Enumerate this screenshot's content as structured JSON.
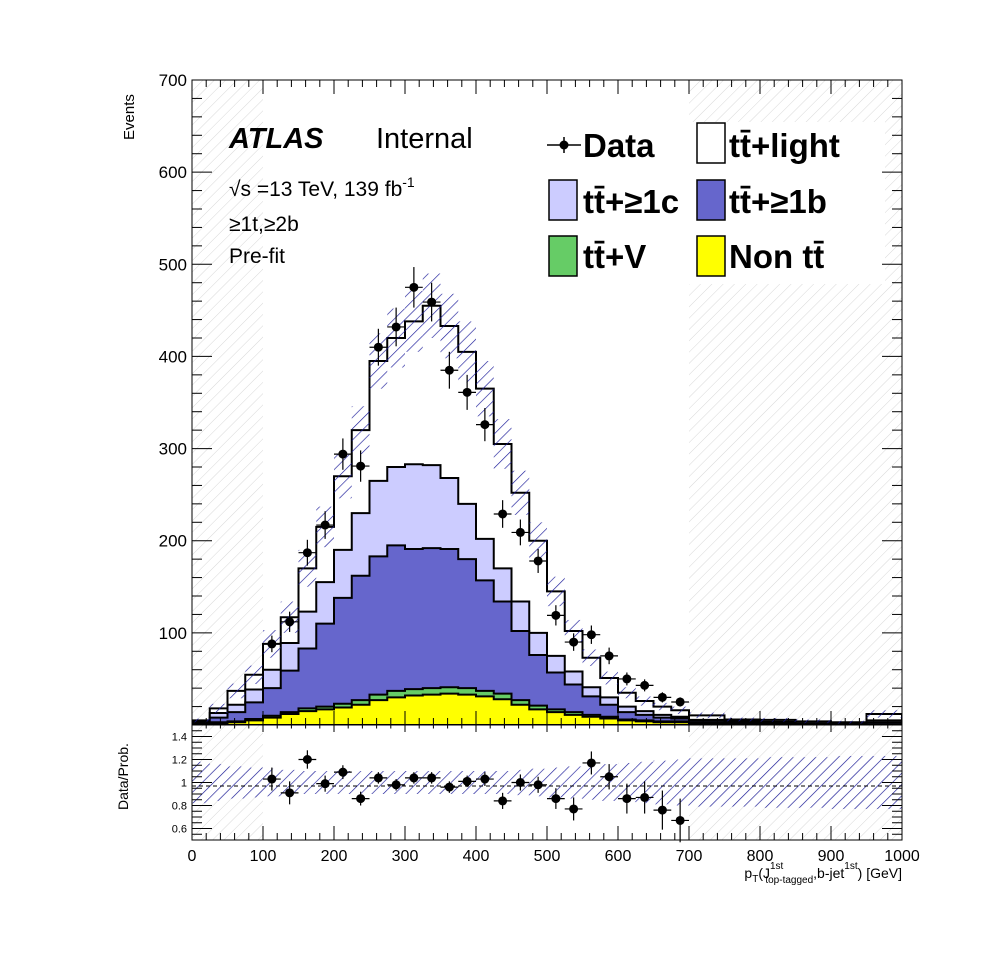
{
  "labels": {
    "atlas": "ATLAS",
    "internal": "Internal",
    "energy_prefix": "√s =13 TeV, 139 fb",
    "energy_exp": "-1",
    "region": "≥1t,≥2b",
    "fit": "Pre-fit"
  },
  "legend": {
    "data": "Data",
    "ttlight": "tt̄+light",
    "tt1c": "tt̄+≥1c",
    "tt1b": "tt̄+≥1b",
    "ttV": "tt̄+V",
    "nontt": "Non tt̄"
  },
  "colors": {
    "ttlight": "#ffffff",
    "tt1c": "#ccccff",
    "tt1b": "#6666cc",
    "ttV": "#66cc66",
    "nontt": "#ffff00",
    "data": "#000000",
    "hatch": "#1a1a99"
  },
  "chart_data": {
    "type": "bar",
    "stacked": true,
    "xlabel_parts": {
      "p": "p",
      "T": "T",
      "open": "(J",
      "sup1": "1st",
      "sub1": "top-tagged",
      "mid": ",b-jet",
      "sup2": "1st",
      "close": ") [GeV]"
    },
    "ylabel_main": "Events",
    "ylabel_ratio": "Data/Prob.",
    "xlim": [
      0,
      1000
    ],
    "ylim": [
      0,
      700
    ],
    "ratio_ylim": [
      0.5,
      1.5
    ],
    "x_ticks": [
      "0",
      "100",
      "200",
      "300",
      "400",
      "500",
      "600",
      "700",
      "800",
      "900",
      "1000"
    ],
    "y_ticks": [
      "100",
      "200",
      "300",
      "400",
      "500",
      "600",
      "700"
    ],
    "ratio_y_ticks": [
      "0.6",
      "0.8",
      "1",
      "1.2",
      "1.4"
    ],
    "bin_edges": [
      0,
      25,
      50,
      75,
      100,
      125,
      150,
      175,
      200,
      225,
      250,
      275,
      300,
      325,
      350,
      375,
      400,
      425,
      450,
      475,
      500,
      525,
      550,
      575,
      600,
      625,
      650,
      675,
      700,
      750,
      800,
      850,
      900,
      950,
      1000
    ],
    "series": [
      {
        "key": "nontt",
        "name": "Non tt̄",
        "values": [
          1,
          2,
          3,
          5,
          8,
          12,
          15,
          17,
          19,
          22,
          27,
          30,
          32,
          33,
          34,
          33,
          31,
          28,
          22,
          17,
          14,
          11,
          9,
          7,
          5,
          4,
          3,
          3,
          2,
          1.5,
          1,
          0.5,
          0.5,
          0.5
        ]
      },
      {
        "key": "ttV",
        "name": "tt̄+V",
        "values": [
          0.5,
          1,
          1,
          1.5,
          2,
          2,
          3,
          3,
          4,
          5,
          6,
          7,
          7,
          7,
          7,
          7,
          6,
          6,
          5,
          4,
          3,
          3,
          2,
          2,
          1,
          1,
          1,
          1,
          0.5,
          0.5,
          0.5,
          0.5,
          0.5,
          0.5
        ]
      },
      {
        "key": "tt1b",
        "name": "tt̄+≥1b",
        "values": [
          1.5,
          5,
          10,
          18,
          30,
          45,
          65,
          90,
          115,
          135,
          150,
          158,
          152,
          152,
          150,
          140,
          120,
          100,
          75,
          55,
          40,
          30,
          20,
          13,
          8,
          6,
          4,
          3,
          2,
          1,
          1,
          0.5,
          0.5,
          2
        ]
      },
      {
        "key": "tt1c",
        "name": "tt̄+≥1c",
        "values": [
          1,
          5,
          8,
          14,
          20,
          30,
          40,
          45,
          52,
          68,
          82,
          85,
          92,
          90,
          77,
          60,
          45,
          36,
          32,
          24,
          18,
          14,
          10,
          8,
          6,
          4,
          3,
          2,
          1,
          1,
          1,
          0.5,
          0.5,
          2
        ]
      },
      {
        "key": "ttlight",
        "name": "tt̄+light",
        "values": [
          1,
          5,
          15,
          16,
          28,
          28,
          47,
          60,
          80,
          90,
          130,
          140,
          155,
          173,
          165,
          165,
          163,
          135,
          118,
          100,
          70,
          44,
          32,
          21,
          15,
          11,
          9,
          7,
          5,
          2,
          2,
          2,
          1,
          7
        ]
      }
    ],
    "mc_unc": [
      2,
      5,
      8,
      10,
      15,
      17,
      20,
      22,
      24,
      26,
      30,
      32,
      33,
      35,
      35,
      33,
      30,
      27,
      24,
      20,
      16,
      12,
      9,
      7,
      6,
      5,
      4,
      4,
      3,
      2,
      2,
      2,
      1.5,
      4
    ],
    "ratio_unc": [
      0.18,
      0.16,
      0.14,
      0.13,
      0.12,
      0.11,
      0.1,
      0.1,
      0.1,
      0.1,
      0.1,
      0.1,
      0.1,
      0.1,
      0.1,
      0.1,
      0.1,
      0.1,
      0.11,
      0.12,
      0.13,
      0.14,
      0.15,
      0.16,
      0.17,
      0.18,
      0.19,
      0.2,
      0.21,
      0.21,
      0.22,
      0.22,
      0.23,
      0.23
    ],
    "data": {
      "x": [
        112.5,
        137.5,
        162.5,
        187.5,
        212.5,
        237.5,
        262.5,
        287.5,
        312.5,
        337.5,
        362.5,
        387.5,
        412.5,
        437.5,
        462.5,
        487.5,
        512.5,
        537.5,
        562.5,
        587.5,
        612.5,
        637.5,
        662.5,
        687.5
      ],
      "y": [
        88,
        112,
        187,
        217,
        294,
        281,
        410,
        432,
        475,
        459,
        385,
        361,
        326,
        229,
        209,
        178,
        119,
        90,
        98,
        75,
        50,
        43,
        30,
        25
      ],
      "err": [
        9,
        11,
        14,
        15,
        17,
        17,
        20,
        21,
        22,
        21,
        20,
        19,
        18,
        15,
        14,
        13,
        11,
        9.5,
        10,
        9,
        7,
        6.5,
        5.5,
        5
      ],
      "ratio": [
        1.03,
        0.91,
        1.2,
        0.99,
        1.09,
        0.86,
        1.04,
        0.98,
        1.04,
        1.04,
        0.96,
        1.01,
        1.03,
        0.84,
        1.0,
        0.98,
        0.86,
        0.77,
        1.17,
        1.05,
        0.86,
        0.87,
        0.76,
        0.67
      ],
      "ratio_err": [
        0.1,
        0.1,
        0.08,
        0.07,
        0.06,
        0.06,
        0.05,
        0.05,
        0.05,
        0.05,
        0.05,
        0.05,
        0.06,
        0.07,
        0.07,
        0.07,
        0.09,
        0.1,
        0.1,
        0.11,
        0.13,
        0.14,
        0.17,
        0.19
      ]
    }
  }
}
